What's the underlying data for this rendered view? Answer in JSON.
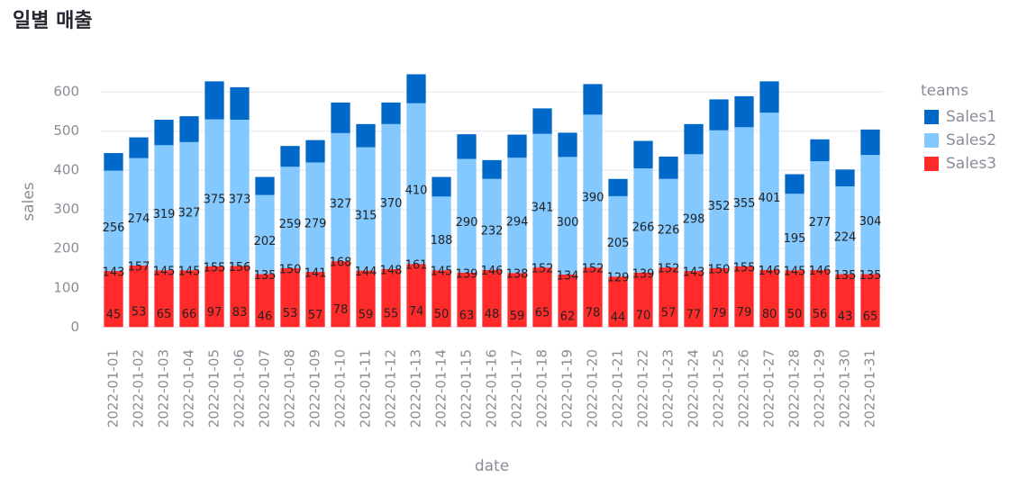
{
  "chart_data": {
    "type": "stacked_bar",
    "title": "일별 매출",
    "x_label": "date",
    "y_label": "sales",
    "legend_title": "teams",
    "legend_position": "right",
    "categories": [
      "2022-01-01",
      "2022-01-02",
      "2022-01-03",
      "2022-01-04",
      "2022-01-05",
      "2022-01-06",
      "2022-01-07",
      "2022-01-08",
      "2022-01-09",
      "2022-01-10",
      "2022-01-11",
      "2022-01-12",
      "2022-01-13",
      "2022-01-14",
      "2022-01-15",
      "2022-01-16",
      "2022-01-17",
      "2022-01-18",
      "2022-01-19",
      "2022-01-20",
      "2022-01-21",
      "2022-01-22",
      "2022-01-23",
      "2022-01-24",
      "2022-01-25",
      "2022-01-26",
      "2022-01-27",
      "2022-01-28",
      "2022-01-29",
      "2022-01-30",
      "2022-01-31"
    ],
    "series": [
      {
        "name": "Sales3",
        "color": "#ff2b2b",
        "values": [
          143,
          157,
          145,
          145,
          155,
          156,
          135,
          150,
          141,
          168,
          144,
          148,
          161,
          145,
          139,
          146,
          138,
          152,
          134,
          152,
          129,
          139,
          152,
          143,
          150,
          155,
          146,
          145,
          146,
          135,
          135
        ]
      },
      {
        "name": "Sales2",
        "color": "#83c9ff",
        "values": [
          256,
          274,
          319,
          327,
          375,
          373,
          202,
          259,
          279,
          327,
          315,
          370,
          410,
          188,
          290,
          232,
          294,
          341,
          300,
          390,
          205,
          266,
          226,
          298,
          352,
          355,
          401,
          195,
          277,
          224,
          304
        ]
      },
      {
        "name": "Sales1",
        "color": "#0068c9",
        "values": [
          45,
          53,
          65,
          66,
          97,
          83,
          46,
          53,
          57,
          78,
          59,
          55,
          74,
          50,
          63,
          48,
          59,
          65,
          62,
          78,
          44,
          70,
          57,
          77,
          79,
          79,
          80,
          50,
          56,
          43,
          65
        ]
      }
    ],
    "ylim": [
      -20,
      660
    ],
    "yticks": [
      0,
      100,
      200,
      300,
      400,
      500,
      600
    ],
    "grid": true
  }
}
